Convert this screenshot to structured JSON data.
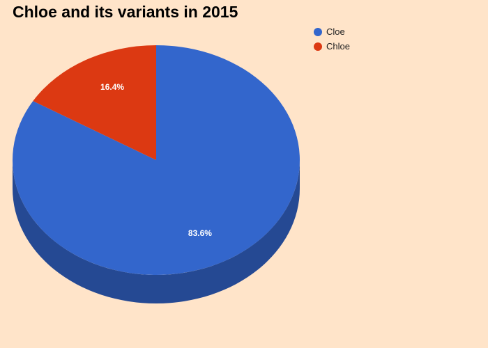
{
  "chart_data": {
    "type": "pie",
    "title": "Chloe and its variants in 2015",
    "is_3d": true,
    "legend_position": "top-right",
    "categories": [
      "Cloe",
      "Chloe"
    ],
    "values": [
      83.6,
      16.4
    ],
    "value_labels": [
      "83.6%",
      "16.4%"
    ],
    "colors": [
      "#3366cc",
      "#dc3912"
    ]
  }
}
